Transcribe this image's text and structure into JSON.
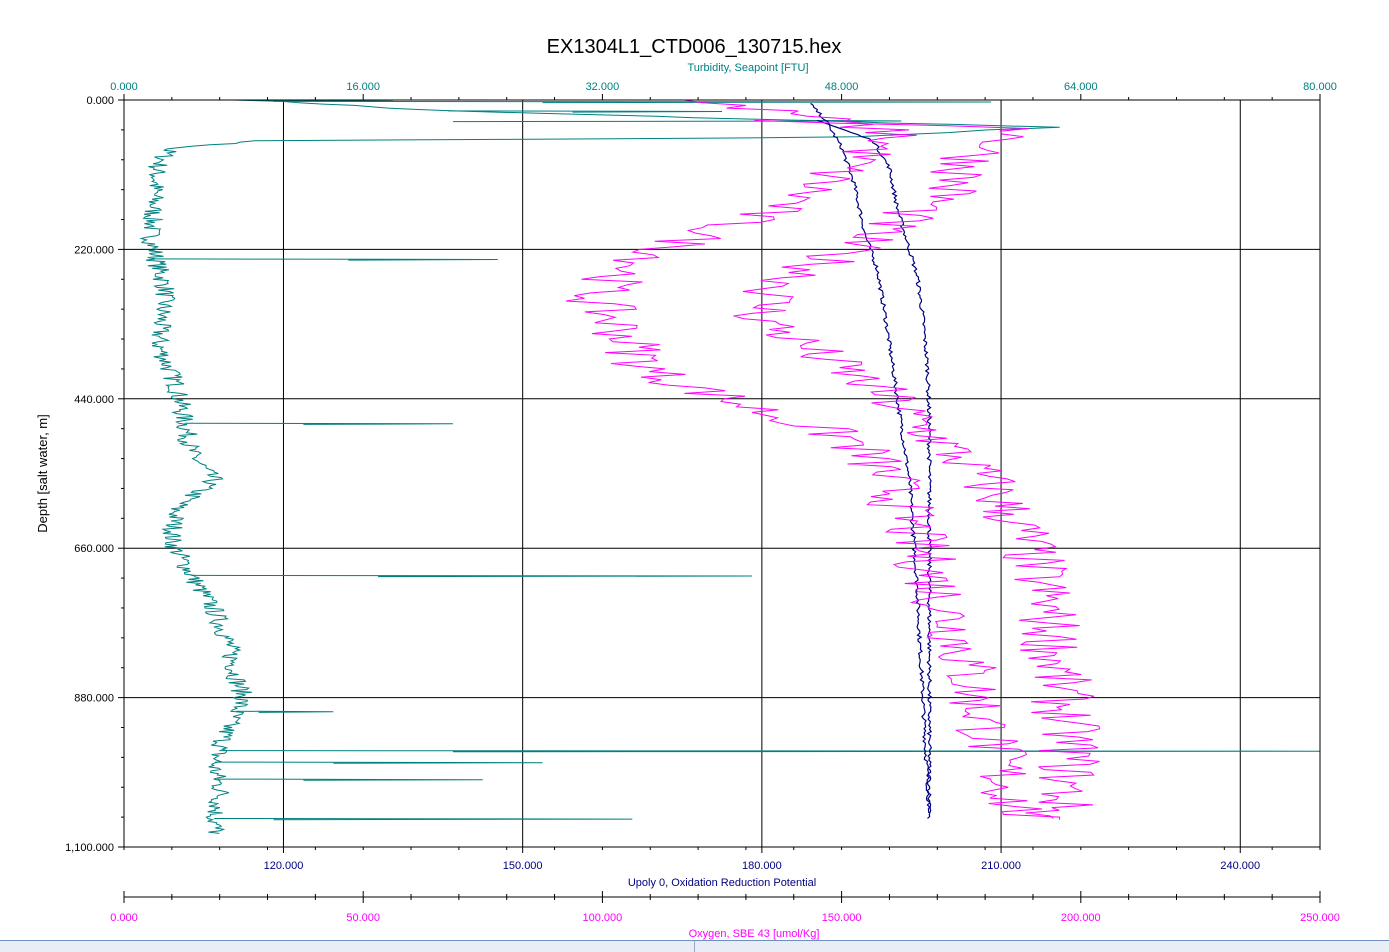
{
  "chart_data": {
    "type": "line",
    "title": "EX1304L1_CTD006_130715.hex",
    "grid": true,
    "y_axis": {
      "label": "Depth [salt water, m]",
      "range": [
        0,
        1100
      ],
      "inverted": true,
      "ticks": [
        "0.000",
        "220.000",
        "440.000",
        "660.000",
        "880.000",
        "1,100.000"
      ],
      "color": "#000000"
    },
    "x_axes": [
      {
        "id": "turbidity",
        "position": "top",
        "label": "Turbidity, Seapoint [FTU]",
        "range": [
          0,
          80
        ],
        "ticks": [
          "0.000",
          "16.000",
          "32.000",
          "48.000",
          "64.000",
          "80.000"
        ],
        "color": "#008080"
      },
      {
        "id": "orp",
        "position": "bottom",
        "label": "Upoly 0, Oxidation Reduction Potential",
        "range": [
          100,
          250
        ],
        "ticks": [
          "120.000",
          "150.000",
          "180.000",
          "210.000",
          "240.000"
        ],
        "tick_values": [
          120,
          150,
          180,
          210,
          240
        ],
        "color": "#000080"
      },
      {
        "id": "oxygen",
        "position": "bottom2",
        "label": "Oxygen, SBE 43 [umol/Kg]",
        "range": [
          0,
          250
        ],
        "ticks": [
          "0.000",
          "50.000",
          "100.000",
          "150.000",
          "200.000",
          "250.000"
        ],
        "color": "#ff00ff"
      }
    ],
    "series": [
      {
        "axis": "turbidity",
        "color": "#008080",
        "points": [
          [
            8,
            0
          ],
          [
            13,
            5
          ],
          [
            20,
            15
          ],
          [
            62,
            40
          ],
          [
            48,
            55
          ],
          [
            9,
            60
          ],
          [
            3,
            72
          ],
          [
            2.2,
            100
          ],
          [
            2,
            150
          ],
          [
            1.8,
            200
          ],
          [
            2,
            220
          ],
          [
            2.2,
            240
          ],
          [
            2.5,
            260
          ],
          [
            2.8,
            280
          ],
          [
            2.5,
            320
          ],
          [
            2.3,
            360
          ],
          [
            3.5,
            420
          ],
          [
            4,
            470
          ],
          [
            4.5,
            520
          ],
          [
            6,
            560
          ],
          [
            3.5,
            600
          ],
          [
            3.2,
            650
          ],
          [
            4.5,
            700
          ],
          [
            6,
            750
          ],
          [
            7,
            800
          ],
          [
            7.5,
            850
          ],
          [
            8,
            880
          ],
          [
            7,
            920
          ],
          [
            6,
            980
          ],
          [
            6.5,
            1020
          ],
          [
            6,
            1060
          ],
          [
            6.2,
            1080
          ]
        ],
        "spikes": [
          [
            0,
            12,
            18
          ],
          [
            2,
            58,
            28
          ],
          [
            16,
            40,
            30
          ],
          [
            30,
            52,
            22
          ],
          [
            234,
            25,
            15
          ],
          [
            476,
            22,
            12
          ],
          [
            700,
            42,
            17
          ],
          [
            900,
            14,
            9
          ],
          [
            958,
            80,
            22
          ],
          [
            975,
            28,
            14
          ],
          [
            1000,
            24,
            12
          ],
          [
            1058,
            34,
            10
          ]
        ]
      },
      {
        "axis": "orp",
        "color": "#000080",
        "points": [
          [
            186,
            5
          ],
          [
            188,
            30
          ],
          [
            190,
            70
          ],
          [
            191.5,
            120
          ],
          [
            193,
            200
          ],
          [
            194.5,
            250
          ],
          [
            195.5,
            320
          ],
          [
            196.5,
            400
          ],
          [
            197.5,
            480
          ],
          [
            198.5,
            560
          ],
          [
            199,
            640
          ],
          [
            199.5,
            720
          ],
          [
            199.8,
            800
          ],
          [
            200.2,
            880
          ],
          [
            200.5,
            950
          ],
          [
            200.8,
            1000
          ],
          [
            201,
            1060
          ]
        ],
        "points_return": [
          [
            187,
            30
          ],
          [
            194,
            60
          ],
          [
            196,
            100
          ],
          [
            197,
            160
          ],
          [
            198.5,
            220
          ],
          [
            199.5,
            260
          ],
          [
            200.2,
            320
          ],
          [
            200.8,
            400
          ],
          [
            201,
            480
          ],
          [
            201,
            560
          ],
          [
            201,
            640
          ],
          [
            201,
            720
          ],
          [
            201,
            800
          ],
          [
            201,
            880
          ],
          [
            201,
            960
          ],
          [
            201,
            1050
          ]
        ]
      },
      {
        "axis": "oxygen",
        "color": "#ff00ff",
        "points": [
          [
            116,
            0
          ],
          [
            140,
            20
          ],
          [
            162,
            50
          ],
          [
            150,
            100
          ],
          [
            140,
            150
          ],
          [
            120,
            200
          ],
          [
            105,
            250
          ],
          [
            98,
            290
          ],
          [
            104,
            340
          ],
          [
            110,
            400
          ],
          [
            130,
            450
          ],
          [
            152,
            500
          ],
          [
            160,
            560
          ],
          [
            165,
            640
          ],
          [
            170,
            720
          ],
          [
            175,
            800
          ],
          [
            178,
            880
          ],
          [
            182,
            960
          ],
          [
            186,
            1040
          ],
          [
            190,
            1060
          ]
        ],
        "points_return": [
          [
            125,
            30
          ],
          [
            190,
            40
          ],
          [
            178,
            80
          ],
          [
            172,
            140
          ],
          [
            158,
            190
          ],
          [
            146,
            240
          ],
          [
            136,
            280
          ],
          [
            133,
            320
          ],
          [
            144,
            370
          ],
          [
            158,
            430
          ],
          [
            170,
            500
          ],
          [
            180,
            560
          ],
          [
            188,
            640
          ],
          [
            192,
            720
          ],
          [
            194,
            800
          ],
          [
            196,
            880
          ],
          [
            198,
            960
          ],
          [
            196,
            1040
          ],
          [
            192,
            1060
          ]
        ]
      }
    ]
  }
}
